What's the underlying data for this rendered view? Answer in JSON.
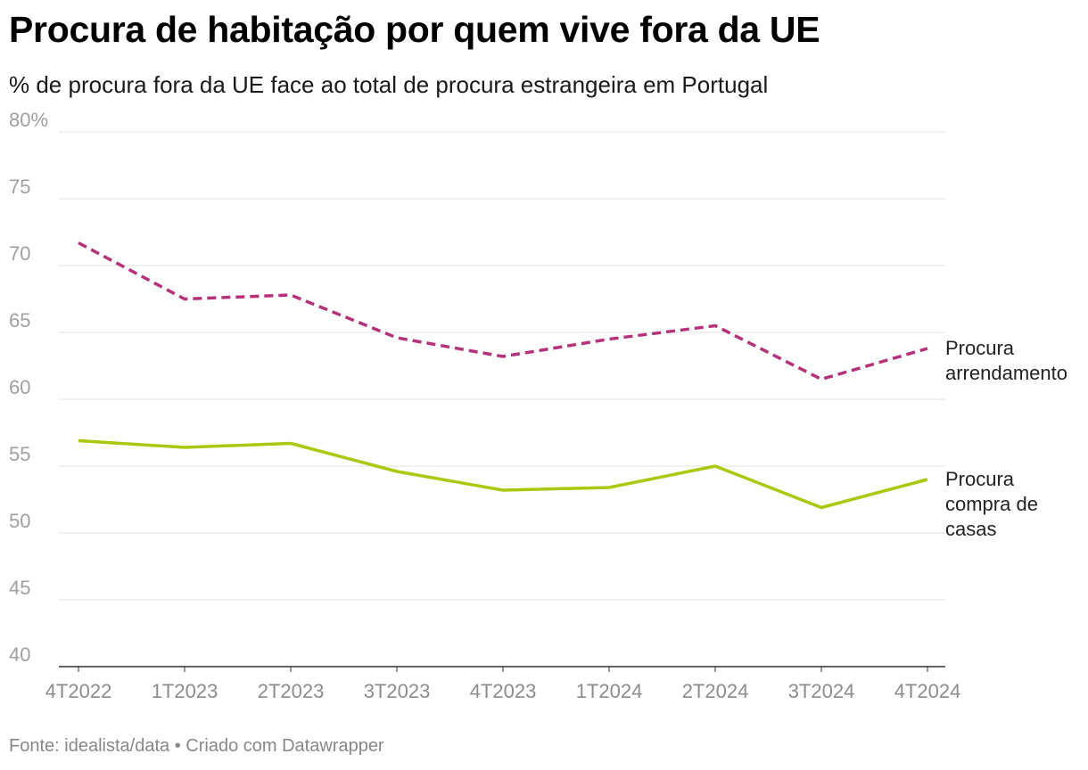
{
  "header": {
    "title": "Procura de habitação por quem vive fora da UE",
    "subtitle": "% de procura fora da UE face ao total de procura estrangeira em Portugal"
  },
  "footer": {
    "source_label": "Fonte:",
    "source_value": "idealista/data",
    "separator": "•",
    "created_with": "Criado com Datawrapper"
  },
  "chart_data": {
    "type": "line",
    "title": "Procura de habitação por quem vive fora da UE",
    "subtitle": "% de procura fora da UE face ao total de procura estrangeira em Portugal",
    "x": [
      "4T2022",
      "1T2023",
      "2T2023",
      "3T2023",
      "4T2023",
      "1T2024",
      "2T2024",
      "3T2024",
      "4T2024"
    ],
    "ylim": [
      40,
      80
    ],
    "yticks": [
      40,
      45,
      50,
      55,
      60,
      65,
      70,
      75,
      80
    ],
    "ytick_labels": [
      "40",
      "45",
      "50",
      "55",
      "60",
      "65",
      "70",
      "75",
      "80%"
    ],
    "grid": true,
    "series": [
      {
        "name": "Procura arrendamento",
        "label_lines": [
          "Procura",
          "arrendamento"
        ],
        "color": "#b5317a",
        "style": "dashed",
        "values": [
          71.7,
          67.5,
          67.8,
          64.6,
          63.2,
          64.5,
          65.5,
          61.5,
          63.8
        ]
      },
      {
        "name": "Procura compra de casas",
        "label_lines": [
          "Procura",
          "compra de",
          "casas"
        ],
        "color": "#a8c90e",
        "style": "solid",
        "values": [
          56.9,
          56.4,
          56.7,
          54.6,
          53.2,
          53.4,
          55.0,
          51.9,
          54.0
        ]
      }
    ]
  }
}
